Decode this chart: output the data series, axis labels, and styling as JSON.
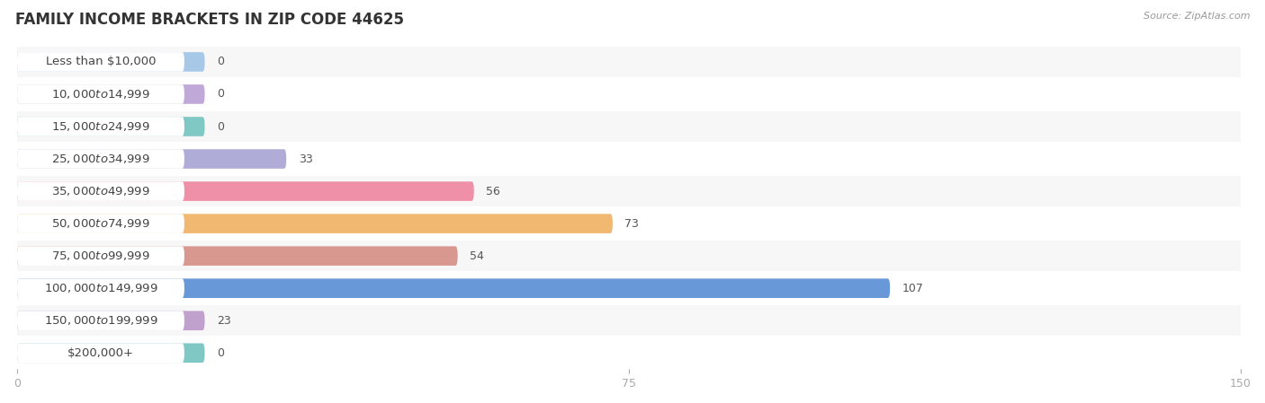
{
  "title": "FAMILY INCOME BRACKETS IN ZIP CODE 44625",
  "source_text": "Source: ZipAtlas.com",
  "categories": [
    "Less than $10,000",
    "$10,000 to $14,999",
    "$15,000 to $24,999",
    "$25,000 to $34,999",
    "$35,000 to $49,999",
    "$50,000 to $74,999",
    "$75,000 to $99,999",
    "$100,000 to $149,999",
    "$150,000 to $199,999",
    "$200,000+"
  ],
  "values": [
    0,
    0,
    0,
    33,
    56,
    73,
    54,
    107,
    23,
    0
  ],
  "bar_colors": [
    "#a8c8e8",
    "#c0a8d8",
    "#80c8c4",
    "#b0acd8",
    "#f090a8",
    "#f0b870",
    "#d89890",
    "#6898d8",
    "#c0a0cc",
    "#80c8c4"
  ],
  "xlim": [
    0,
    150
  ],
  "xticks": [
    0,
    75,
    150
  ],
  "background_color": "#ffffff",
  "row_bg_odd": "#f7f7f7",
  "row_bg_even": "#ffffff",
  "bar_height": 0.6,
  "title_fontsize": 12,
  "label_fontsize": 9.5,
  "tick_fontsize": 9,
  "value_fontsize": 9,
  "label_color": "#444444",
  "value_color": "#555555",
  "title_color": "#333333",
  "source_color": "#999999"
}
